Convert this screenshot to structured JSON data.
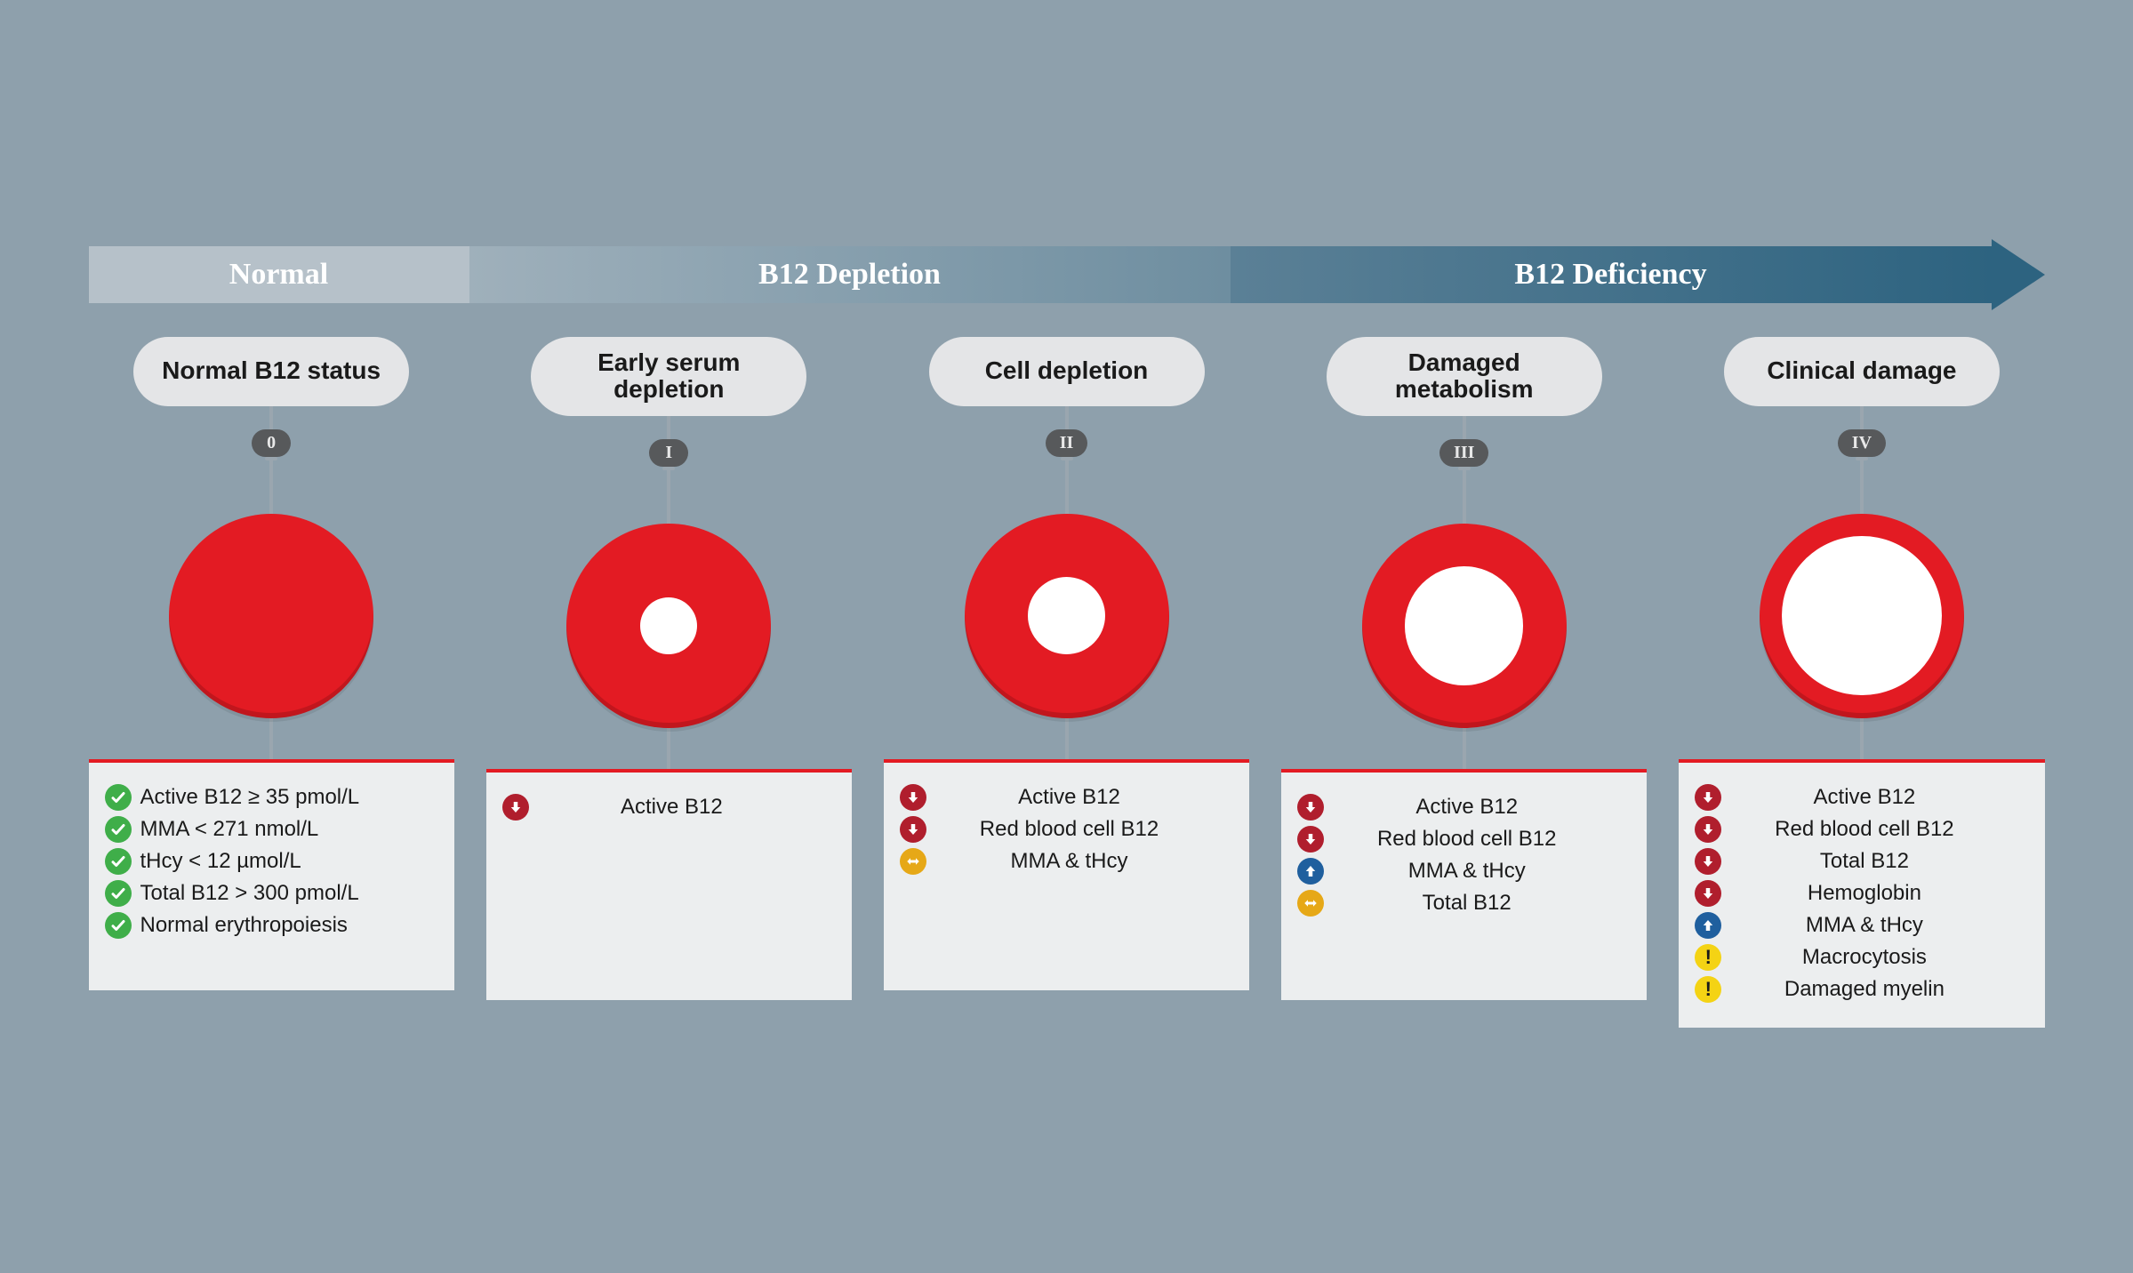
{
  "colors": {
    "page_bg": "#8ea0ac",
    "red": "#e31b23",
    "panel_bg": "#eceeef",
    "panel_border": "#e31b23",
    "pill_bg": "#e4e5e7",
    "badge_bg": "#57595b",
    "stem": "#9aa6af",
    "icon_check": "#3fae49",
    "icon_down": "#b01e2d",
    "icon_up": "#1f5f9e",
    "icon_swap": "#e6a817",
    "icon_warn": "#f4d314",
    "seg_normal": "#b6c1c9",
    "seg_deplete_from": "#9fb0bb",
    "seg_deplete_to": "#6e8ea0",
    "seg_defic_from": "#5b8096",
    "seg_defic_to": "#2d6380"
  },
  "header": {
    "segments": {
      "normal": "Normal",
      "depletion": "B12 Depletion",
      "deficiency": "B12 Deficiency"
    }
  },
  "stages": {
    "s0": {
      "title": "Normal B12 status",
      "numeral": "0",
      "hole_pct": 0,
      "markers": [
        {
          "icon": "check",
          "text": "Active B12 ≥ 35 pmol/L"
        },
        {
          "icon": "check",
          "text": "MMA < 271 nmol/L"
        },
        {
          "icon": "check",
          "text": "tHcy < 12 µmol/L"
        },
        {
          "icon": "check",
          "text": "Total B12 > 300 pmol/L"
        },
        {
          "icon": "check",
          "text": "Normal erythropoiesis"
        }
      ]
    },
    "s1": {
      "title": "Early serum depletion",
      "numeral": "I",
      "hole_pct": 28,
      "markers": [
        {
          "icon": "down",
          "text": "Active B12"
        }
      ]
    },
    "s2": {
      "title": "Cell depletion",
      "numeral": "II",
      "hole_pct": 38,
      "markers": [
        {
          "icon": "down",
          "text": "Active B12"
        },
        {
          "icon": "down",
          "text": "Red blood cell B12"
        },
        {
          "icon": "swap",
          "text": "MMA & tHcy"
        }
      ]
    },
    "s3": {
      "title": "Damaged metabolism",
      "numeral": "III",
      "hole_pct": 58,
      "markers": [
        {
          "icon": "down",
          "text": "Active B12"
        },
        {
          "icon": "down",
          "text": "Red blood cell B12"
        },
        {
          "icon": "up",
          "text": "MMA & tHcy"
        },
        {
          "icon": "swap",
          "text": "Total B12"
        }
      ]
    },
    "s4": {
      "title": "Clinical damage",
      "numeral": "IV",
      "hole_pct": 78,
      "markers": [
        {
          "icon": "down",
          "text": "Active B12"
        },
        {
          "icon": "down",
          "text": "Red blood cell B12"
        },
        {
          "icon": "down",
          "text": "Total B12"
        },
        {
          "icon": "down",
          "text": "Hemoglobin"
        },
        {
          "icon": "up",
          "text": "MMA & tHcy"
        },
        {
          "icon": "warn",
          "text": "Macrocytosis"
        },
        {
          "icon": "warn",
          "text": "Damaged myelin"
        }
      ]
    }
  }
}
